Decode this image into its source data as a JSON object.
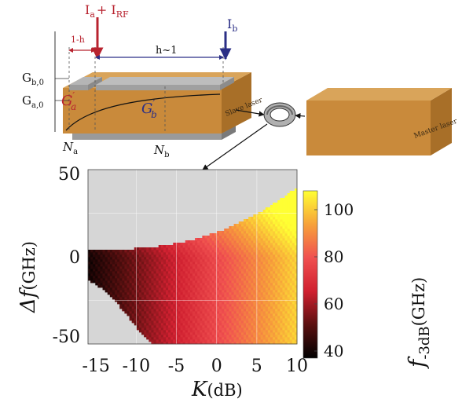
{
  "device": {
    "current_ab": "I",
    "current_ab_sub": "a",
    "current_plus": "+ I",
    "current_rf_sub": "RF",
    "current_b": "I",
    "current_b_sub": "b",
    "len_left": "1-h",
    "len_right": "h~1",
    "g_b0": "G",
    "g_b0_sub": "b,0",
    "g_a0": "G",
    "g_a0_sub": "a,0",
    "g_a_prime": "G",
    "g_a_prime_sub": "a",
    "g_b_prime": "G",
    "g_b_prime_sub": "b",
    "n_a": "N",
    "n_a_sub": "a",
    "n_b": "N",
    "n_b_sub": "b",
    "slave_label": "Slave laser",
    "master_label": "Master laser"
  },
  "chart_data": {
    "type": "heatmap",
    "xlabel": "K",
    "xlabel_unit": "(dB)",
    "ylabel": "Δf",
    "ylabel_unit": "(GHz)",
    "xlim": [
      -16,
      10
    ],
    "ylim": [
      -50,
      50
    ],
    "xticks": [
      "-15",
      "-10",
      "-5",
      "0",
      "5",
      "10"
    ],
    "xtick_values": [
      -15,
      -10,
      -5,
      0,
      5,
      10
    ],
    "yticks": [
      "50",
      "0",
      "-50"
    ],
    "ytick_values": [
      50,
      0,
      -50
    ],
    "colorbar": {
      "label": "f",
      "label_sub": "-3dB",
      "label_unit": "(GHz)",
      "range": [
        37,
        108
      ],
      "ticks": [
        "100",
        "80",
        "60",
        "40"
      ],
      "tick_values": [
        100,
        80,
        60,
        40
      ],
      "colors": [
        "#000000",
        "#5a1010",
        "#d02030",
        "#f05050",
        "#f7a23a",
        "#ffff33"
      ]
    },
    "background_color": "#d6d6d6"
  }
}
